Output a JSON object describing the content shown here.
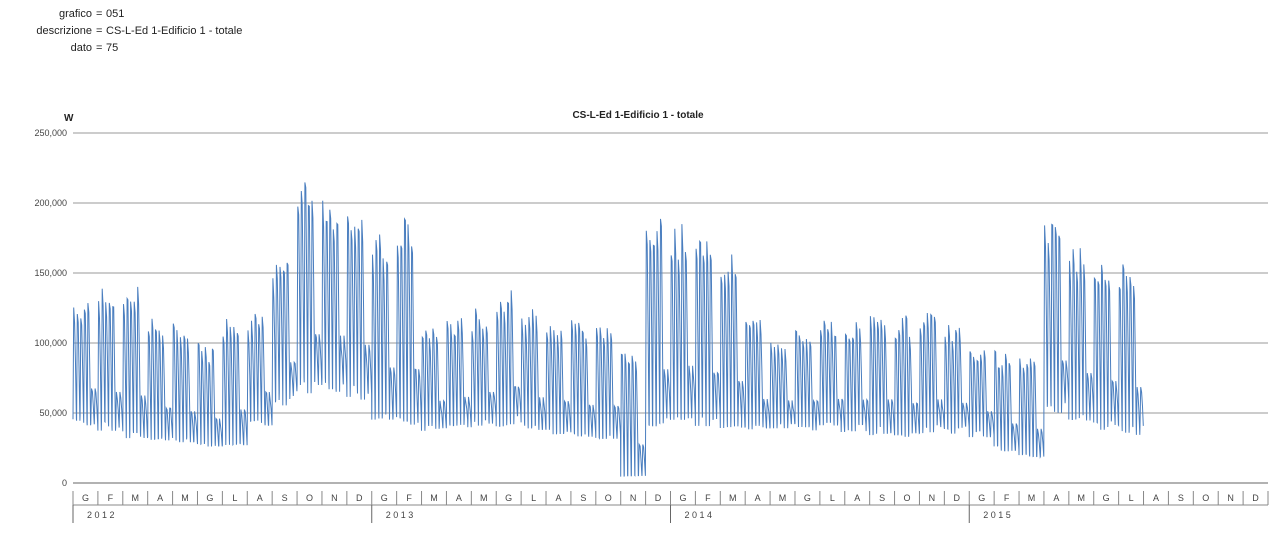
{
  "header": {
    "fields": [
      {
        "key": "grafico",
        "value": "051"
      },
      {
        "key": "descrizione",
        "value": "CS-L-Ed 1-Edificio 1 - totale"
      },
      {
        "key": "dato",
        "value": "75"
      }
    ]
  },
  "chart_data": {
    "type": "line",
    "title": "CS-L-Ed 1-Edificio 1 - totale",
    "ylabel": "W",
    "xlabel": "",
    "ylim": [
      0,
      250000
    ],
    "yticks": [
      0,
      50000,
      100000,
      150000,
      200000,
      250000
    ],
    "ytick_labels": [
      "0",
      "50,000",
      "100,000",
      "150,000",
      "200,000",
      "250,000"
    ],
    "grid": true,
    "legend": "none",
    "series_color": "#4a7ebf",
    "x_unit": "week",
    "x_count": 48,
    "month_labels": [
      "G",
      "F",
      "M",
      "A",
      "M",
      "G",
      "L",
      "A",
      "S",
      "O",
      "N",
      "D",
      "G",
      "F",
      "M",
      "A",
      "M",
      "G",
      "L",
      "A",
      "S",
      "O",
      "N",
      "D",
      "G",
      "F",
      "M",
      "A",
      "M",
      "G",
      "L",
      "A",
      "S",
      "O",
      "N",
      "D",
      "G",
      "F",
      "M",
      "A",
      "M",
      "G",
      "L",
      "A",
      "S",
      "O",
      "N",
      "D"
    ],
    "year_groups": [
      {
        "label": "2 0 1 2",
        "months": 12
      },
      {
        "label": "2 0 1 3",
        "months": 12
      },
      {
        "label": "2 0 1 4",
        "months": 12
      },
      {
        "label": "2 0 1 5",
        "months": 12
      }
    ],
    "series": [
      {
        "weekly_peak": [
          135000,
          140000,
          145000,
          118000,
          115000,
          100000,
          120000,
          125000,
          165000,
          215000,
          205000,
          200000,
          180000,
          190000,
          115000,
          120000,
          125000,
          140000,
          125000,
          120000,
          118000,
          115000,
          95000,
          190000,
          185000,
          180000,
          165000,
          120000,
          110000,
          115000,
          120000,
          118000,
          125000,
          120000,
          125000,
          115000,
          100000,
          95000,
          95000,
          185000,
          170000,
          165000,
          160000,
          null,
          null,
          null,
          null,
          null
        ],
        "weekly_base": [
          45000,
          40000,
          35000,
          32000,
          30000,
          28000,
          30000,
          45000,
          60000,
          70000,
          72000,
          65000,
          50000,
          45000,
          40000,
          42000,
          45000,
          45000,
          40000,
          38000,
          35000,
          35000,
          5000,
          45000,
          50000,
          45000,
          42000,
          40000,
          42000,
          40000,
          40000,
          40000,
          38000,
          36000,
          38000,
          38000,
          35000,
          25000,
          20000,
          55000,
          48000,
          42000,
          38000,
          null,
          null,
          null,
          null,
          null
        ]
      }
    ]
  }
}
